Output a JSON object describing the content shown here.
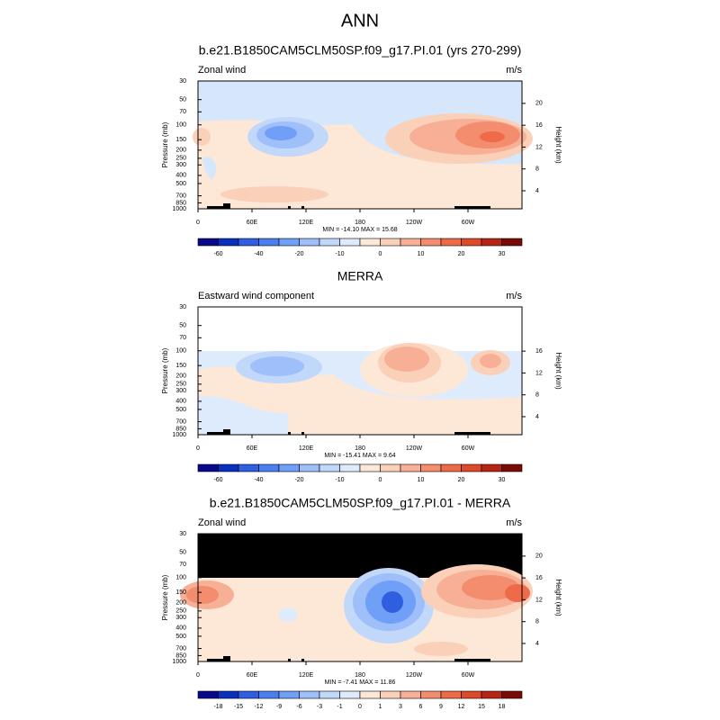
{
  "title": "ANN",
  "chart_data": [
    {
      "type": "contour",
      "title": "b.e21.B1850CAM5CLM50SP.f09_g17.PI.01 (yrs 270-299)",
      "left_label": "Zonal wind",
      "right_label": "m/s",
      "ylabel": "Pressure (mb)",
      "y2label": "Height (km)",
      "xlim": [
        0,
        360
      ],
      "xticks": [
        0,
        {
          "value": 60,
          "label": "60E"
        },
        {
          "value": 120,
          "label": "120E"
        },
        180,
        {
          "value": 240,
          "label": "120W"
        },
        {
          "value": 300,
          "label": "60W"
        }
      ],
      "ylim": [
        30,
        1000
      ],
      "y_log_scale": true,
      "y_inverted": true,
      "yticks": [
        30,
        50,
        70,
        100,
        150,
        200,
        250,
        300,
        400,
        500,
        700,
        850,
        1000
      ],
      "y2lim": [
        0.7,
        24.1
      ],
      "y2ticks": [
        20,
        16,
        12,
        8,
        4
      ],
      "stats": "MIN = -14.10  MAX =  15.68",
      "colorbar": {
        "colors": [
          "#08088a",
          "#0a2fbf",
          "#2f5fe0",
          "#4a7ff0",
          "#6f9ff7",
          "#9fbffa",
          "#c2d8fb",
          "#deebfc",
          "#fde8d8",
          "#fbd0b9",
          "#f7b096",
          "#f48c6e",
          "#ef6a48",
          "#dc4a2a",
          "#b82414",
          "#7a0a05"
        ],
        "labels": [
          -60,
          -40,
          -20,
          -10,
          0,
          10,
          20,
          30
        ]
      }
    },
    {
      "type": "contour",
      "title": "MERRA",
      "left_label": "Eastward wind component",
      "right_label": "m/s",
      "ylabel": "Pressure (mb)",
      "y2label": "Height (km)",
      "xlim": [
        0,
        360
      ],
      "xticks": [
        0,
        {
          "value": 60,
          "label": "60E"
        },
        {
          "value": 120,
          "label": "120E"
        },
        180,
        {
          "value": 240,
          "label": "120W"
        },
        {
          "value": 300,
          "label": "60W"
        }
      ],
      "ylim": [
        30,
        1000
      ],
      "y_log_scale": true,
      "y_inverted": true,
      "yticks": [
        30,
        50,
        70,
        100,
        150,
        200,
        250,
        300,
        400,
        500,
        700,
        850,
        1000
      ],
      "y2lim": [
        0.7,
        24.1
      ],
      "y2ticks": [
        16,
        12,
        8,
        4
      ],
      "stats": "MIN = -15.41  MAX =   9.64",
      "colorbar": {
        "colors": [
          "#08088a",
          "#0a2fbf",
          "#2f5fe0",
          "#4a7ff0",
          "#6f9ff7",
          "#9fbffa",
          "#c2d8fb",
          "#deebfc",
          "#fde8d8",
          "#fbd0b9",
          "#f7b096",
          "#f48c6e",
          "#ef6a48",
          "#dc4a2a",
          "#b82414",
          "#7a0a05"
        ],
        "labels": [
          -60,
          -40,
          -20,
          -10,
          0,
          10,
          20,
          30
        ]
      }
    },
    {
      "type": "contour",
      "title": "b.e21.B1850CAM5CLM50SP.f09_g17.PI.01 - MERRA",
      "left_label": "Zonal wind",
      "right_label": "m/s",
      "ylabel": "Pressure (mb)",
      "y2label": "Height (km)",
      "xlim": [
        0,
        360
      ],
      "xticks": [
        0,
        {
          "value": 60,
          "label": "60E"
        },
        {
          "value": 120,
          "label": "120E"
        },
        180,
        {
          "value": 240,
          "label": "120W"
        },
        {
          "value": 300,
          "label": "60W"
        }
      ],
      "ylim": [
        30,
        1000
      ],
      "y_log_scale": true,
      "y_inverted": true,
      "yticks": [
        30,
        50,
        70,
        100,
        150,
        200,
        250,
        300,
        400,
        500,
        700,
        850,
        1000
      ],
      "y2lim": [
        0.7,
        24.1
      ],
      "y2ticks": [
        20,
        16,
        12,
        8,
        4
      ],
      "stats": "MIN = -7.41  MAX = 11.86",
      "colorbar": {
        "colors": [
          "#08088a",
          "#0a2fbf",
          "#2f5fe0",
          "#4a7ff0",
          "#6f9ff7",
          "#9fbffa",
          "#c2d8fb",
          "#deebfc",
          "#fde8d8",
          "#fbd0b9",
          "#f7b096",
          "#f48c6e",
          "#ef6a48",
          "#dc4a2a",
          "#b82414",
          "#7a0a05"
        ],
        "labels": [
          -18,
          -15,
          -12,
          -9,
          -6,
          -3,
          -1,
          0,
          1,
          3,
          6,
          9,
          12,
          15,
          18
        ]
      }
    }
  ]
}
